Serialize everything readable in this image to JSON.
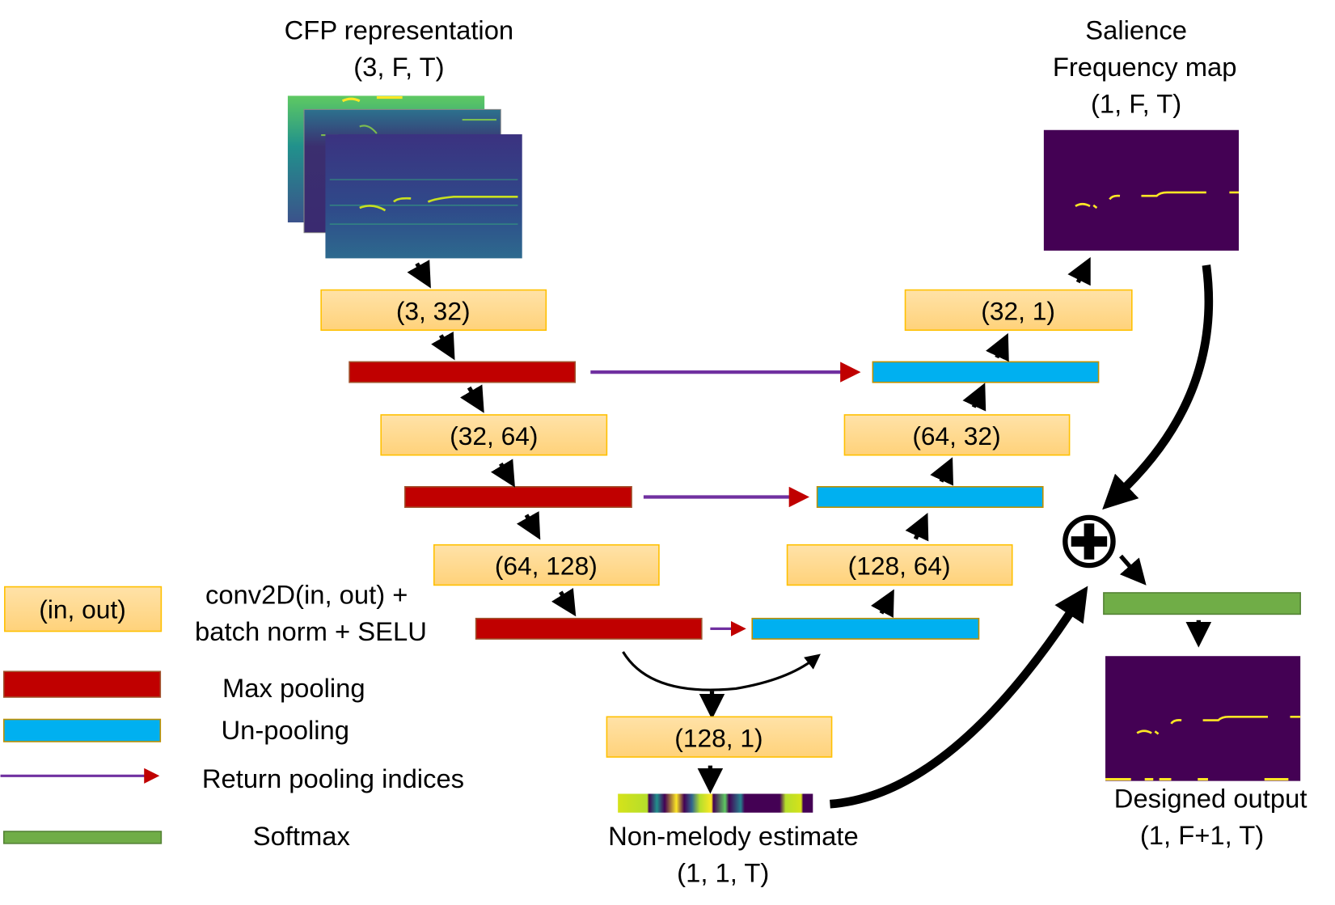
{
  "input": {
    "title": "CFP representation",
    "shape": "(3, F, T)"
  },
  "salience": {
    "title_line1": "Salience",
    "title_line2": "Frequency map",
    "shape": "(1, F, T)"
  },
  "encoder": {
    "conv1": "(3, 32)",
    "conv2": "(32, 64)",
    "conv3": "(64, 128)"
  },
  "bottleneck": {
    "conv": "(128, 1)",
    "label": "Non-melody estimate",
    "shape": "(1, 1, T)"
  },
  "decoder": {
    "conv1": "(128, 64)",
    "conv2": "(64, 32)",
    "conv3": "(32, 1)"
  },
  "output": {
    "label": "Designed output",
    "shape": "(1, F+1, T)"
  },
  "legend": {
    "conv_box": "(in, out)",
    "conv_line1": "conv2D(in, out) +",
    "conv_line2": "batch norm + SELU",
    "maxpool": "Max pooling",
    "unpool": "Un-pooling",
    "indices": "Return pooling indices",
    "softmax": "Softmax"
  },
  "colors": {
    "conv": "#ffd98a",
    "maxpool": "#c00000",
    "unpool": "#00b0f0",
    "indices_arrow": "#7030a0",
    "softmax": "#70ad47",
    "map_background": "#440154",
    "map_line": "#fde725"
  }
}
